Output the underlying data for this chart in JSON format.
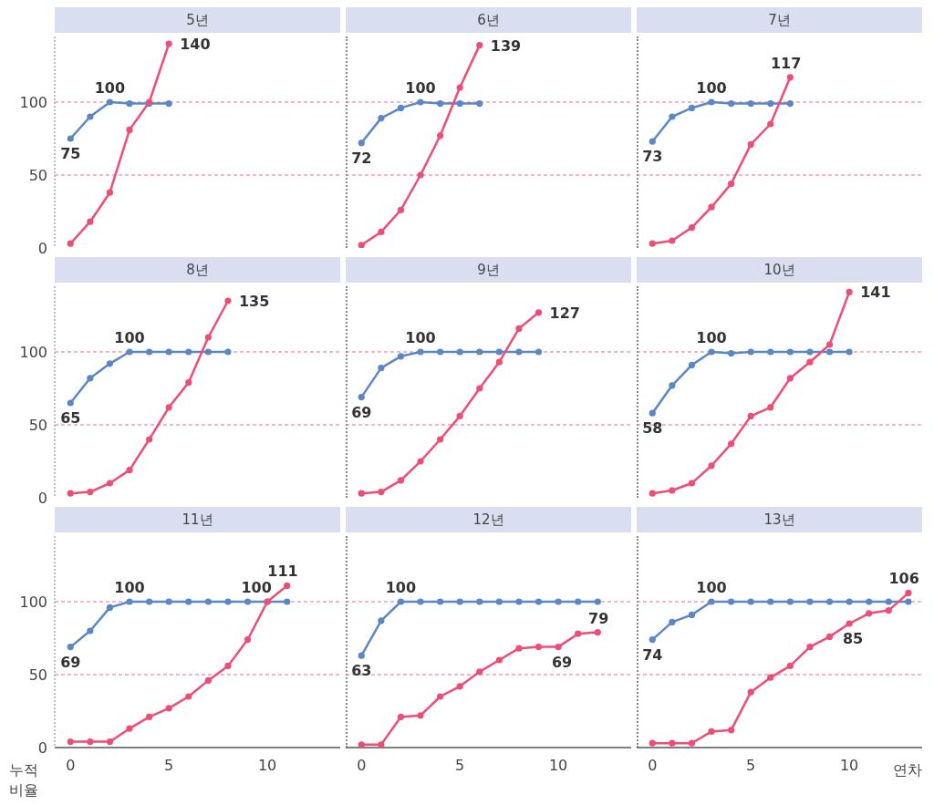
{
  "chart_data": [
    {
      "type": "line",
      "title": "5년",
      "x": [
        0,
        1,
        2,
        3,
        4,
        5
      ],
      "xlim": [
        -0.8,
        13.7
      ],
      "xticks": [
        0,
        5,
        10
      ],
      "ylim": [
        0,
        145
      ],
      "yticks": [
        0,
        50,
        100
      ],
      "tick_labels": "y",
      "marker": "circle",
      "line_style": "solid",
      "ref_lines": [
        {
          "axis": "y",
          "value": 50,
          "color": "#ee6d8e",
          "line_style": "dashed"
        },
        {
          "axis": "y",
          "value": 100,
          "color": "#ee6d8e",
          "line_style": "dashed"
        }
      ],
      "series": [
        {
          "color": "#5b87c6",
          "values": [
            75,
            90,
            100,
            99,
            99,
            99
          ],
          "value_labels": [
            "75",
            null,
            "100",
            null,
            null,
            null
          ]
        },
        {
          "color": "#ee4d76",
          "values": [
            3,
            18,
            38,
            81,
            100,
            140
          ],
          "value_labels": [
            null,
            null,
            null,
            null,
            null,
            "140"
          ]
        }
      ]
    },
    {
      "type": "line",
      "title": "6년",
      "x": [
        0,
        1,
        2,
        3,
        4,
        5,
        6
      ],
      "xlim": [
        -0.8,
        13.7
      ],
      "xticks": [
        0,
        5,
        10
      ],
      "ylim": [
        0,
        145
      ],
      "yticks": [
        0,
        50,
        100
      ],
      "tick_labels": false,
      "marker": "circle",
      "line_style": "solid",
      "ref_lines": [
        {
          "axis": "y",
          "value": 50,
          "color": "#ee6d8e",
          "line_style": "dashed"
        },
        {
          "axis": "y",
          "value": 100,
          "color": "#ee6d8e",
          "line_style": "dashed"
        }
      ],
      "series": [
        {
          "color": "#5b87c6",
          "values": [
            72,
            89,
            96,
            100,
            99,
            99,
            99
          ],
          "value_labels": [
            "72",
            null,
            null,
            "100",
            null,
            null,
            null
          ]
        },
        {
          "color": "#ee4d76",
          "values": [
            2,
            11,
            26,
            50,
            77,
            110,
            139
          ],
          "value_labels": [
            null,
            null,
            null,
            null,
            null,
            null,
            "139"
          ]
        }
      ]
    },
    {
      "type": "line",
      "title": "7년",
      "x": [
        0,
        1,
        2,
        3,
        4,
        5,
        6,
        7
      ],
      "xlim": [
        -0.8,
        13.7
      ],
      "xticks": [
        0,
        5,
        10
      ],
      "ylim": [
        0,
        145
      ],
      "yticks": [
        0,
        50,
        100
      ],
      "tick_labels": false,
      "marker": "circle",
      "line_style": "solid",
      "ref_lines": [
        {
          "axis": "y",
          "value": 50,
          "color": "#ee6d8e",
          "line_style": "dashed"
        },
        {
          "axis": "y",
          "value": 100,
          "color": "#ee6d8e",
          "line_style": "dashed"
        }
      ],
      "series": [
        {
          "color": "#5b87c6",
          "values": [
            73,
            90,
            96,
            100,
            99,
            99,
            99,
            99
          ],
          "value_labels": [
            "73",
            null,
            null,
            "100",
            null,
            null,
            null,
            null
          ]
        },
        {
          "color": "#ee4d76",
          "values": [
            3,
            5,
            14,
            28,
            44,
            71,
            85,
            117
          ],
          "value_labels": [
            null,
            null,
            null,
            null,
            null,
            null,
            null,
            "117"
          ]
        }
      ]
    },
    {
      "type": "line",
      "title": "8년",
      "x": [
        0,
        1,
        2,
        3,
        4,
        5,
        6,
        7,
        8
      ],
      "xlim": [
        -0.8,
        13.7
      ],
      "xticks": [
        0,
        5,
        10
      ],
      "ylim": [
        0,
        145
      ],
      "yticks": [
        0,
        50,
        100
      ],
      "tick_labels": "y",
      "marker": "circle",
      "line_style": "solid",
      "ref_lines": [
        {
          "axis": "y",
          "value": 50,
          "color": "#ee6d8e",
          "line_style": "dashed"
        },
        {
          "axis": "y",
          "value": 100,
          "color": "#ee6d8e",
          "line_style": "dashed"
        }
      ],
      "series": [
        {
          "color": "#5b87c6",
          "values": [
            65,
            82,
            92,
            100,
            100,
            100,
            100,
            100,
            100
          ],
          "value_labels": [
            "65",
            null,
            null,
            "100",
            null,
            null,
            null,
            null,
            null
          ]
        },
        {
          "color": "#ee4d76",
          "values": [
            3,
            4,
            10,
            19,
            40,
            62,
            79,
            110,
            135
          ],
          "value_labels": [
            null,
            null,
            null,
            null,
            null,
            null,
            null,
            null,
            "135"
          ]
        }
      ]
    },
    {
      "type": "line",
      "title": "9년",
      "x": [
        0,
        1,
        2,
        3,
        4,
        5,
        6,
        7,
        8,
        9
      ],
      "xlim": [
        -0.8,
        13.7
      ],
      "xticks": [
        0,
        5,
        10
      ],
      "ylim": [
        0,
        145
      ],
      "yticks": [
        0,
        50,
        100
      ],
      "tick_labels": false,
      "marker": "circle",
      "line_style": "solid",
      "ref_lines": [
        {
          "axis": "y",
          "value": 50,
          "color": "#ee6d8e",
          "line_style": "dashed"
        },
        {
          "axis": "y",
          "value": 100,
          "color": "#ee6d8e",
          "line_style": "dashed"
        }
      ],
      "series": [
        {
          "color": "#5b87c6",
          "values": [
            69,
            89,
            97,
            100,
            100,
            100,
            100,
            100,
            100,
            100
          ],
          "value_labels": [
            "69",
            null,
            null,
            "100",
            null,
            null,
            null,
            null,
            null,
            null
          ]
        },
        {
          "color": "#ee4d76",
          "values": [
            3,
            4,
            12,
            25,
            40,
            56,
            75,
            93,
            116,
            127
          ],
          "value_labels": [
            null,
            null,
            null,
            null,
            null,
            null,
            null,
            null,
            null,
            "127"
          ]
        }
      ]
    },
    {
      "type": "line",
      "title": "10년",
      "x": [
        0,
        1,
        2,
        3,
        4,
        5,
        6,
        7,
        8,
        9,
        10
      ],
      "xlim": [
        -0.8,
        13.7
      ],
      "xticks": [
        0,
        5,
        10
      ],
      "ylim": [
        0,
        145
      ],
      "yticks": [
        0,
        50,
        100
      ],
      "tick_labels": false,
      "marker": "circle",
      "line_style": "solid",
      "ref_lines": [
        {
          "axis": "y",
          "value": 50,
          "color": "#ee6d8e",
          "line_style": "dashed"
        },
        {
          "axis": "y",
          "value": 100,
          "color": "#ee6d8e",
          "line_style": "dashed"
        }
      ],
      "series": [
        {
          "color": "#5b87c6",
          "values": [
            58,
            77,
            91,
            100,
            99,
            100,
            100,
            100,
            100,
            100,
            100
          ],
          "value_labels": [
            "58",
            null,
            null,
            "100",
            null,
            null,
            null,
            null,
            null,
            null,
            null
          ]
        },
        {
          "color": "#ee4d76",
          "values": [
            3,
            5,
            10,
            22,
            37,
            56,
            62,
            82,
            93,
            105,
            141
          ],
          "value_labels": [
            null,
            null,
            null,
            null,
            null,
            null,
            null,
            null,
            null,
            null,
            "141"
          ]
        }
      ]
    },
    {
      "type": "line",
      "title": "11년",
      "ylabel": "누적 비율",
      "x": [
        0,
        1,
        2,
        3,
        4,
        5,
        6,
        7,
        8,
        9,
        10,
        11
      ],
      "xlim": [
        -0.8,
        13.7
      ],
      "xticks": [
        0,
        5,
        10
      ],
      "ylim": [
        0,
        145
      ],
      "yticks": [
        0,
        50,
        100
      ],
      "marker": "circle",
      "line_style": "solid",
      "ref_lines": [
        {
          "axis": "y",
          "value": 50,
          "color": "#ee6d8e",
          "line_style": "dashed"
        },
        {
          "axis": "y",
          "value": 100,
          "color": "#ee6d8e",
          "line_style": "dashed"
        }
      ],
      "series": [
        {
          "color": "#5b87c6",
          "values": [
            69,
            80,
            96,
            100,
            100,
            100,
            100,
            100,
            100,
            100,
            100,
            100
          ],
          "value_labels": [
            "69",
            null,
            null,
            "100",
            null,
            null,
            null,
            null,
            null,
            null,
            null,
            null
          ]
        },
        {
          "color": "#ee4d76",
          "values": [
            4,
            4,
            4,
            13,
            21,
            27,
            35,
            46,
            56,
            74,
            100,
            111
          ],
          "value_labels": [
            null,
            null,
            null,
            null,
            null,
            null,
            null,
            null,
            null,
            null,
            "100",
            "111"
          ]
        }
      ]
    },
    {
      "type": "line",
      "title": "12년",
      "x": [
        0,
        1,
        2,
        3,
        4,
        5,
        6,
        7,
        8,
        9,
        10,
        11,
        12
      ],
      "xlim": [
        -0.8,
        13.7
      ],
      "xticks": [
        0,
        5,
        10
      ],
      "ylim": [
        0,
        145
      ],
      "yticks": [
        0,
        50,
        100
      ],
      "tick_labels": "x",
      "marker": "circle",
      "line_style": "solid",
      "ref_lines": [
        {
          "axis": "y",
          "value": 50,
          "color": "#ee6d8e",
          "line_style": "dashed"
        },
        {
          "axis": "y",
          "value": 100,
          "color": "#ee6d8e",
          "line_style": "dashed"
        }
      ],
      "series": [
        {
          "color": "#5b87c6",
          "values": [
            63,
            87,
            100,
            100,
            100,
            100,
            100,
            100,
            100,
            100,
            100,
            100,
            100
          ],
          "value_labels": [
            "63",
            null,
            "100",
            null,
            null,
            null,
            null,
            null,
            null,
            null,
            null,
            null,
            null
          ]
        },
        {
          "color": "#ee4d76",
          "values": [
            2,
            2,
            21,
            22,
            35,
            42,
            52,
            60,
            68,
            69,
            69,
            78,
            79
          ],
          "value_labels": [
            null,
            null,
            null,
            null,
            null,
            null,
            null,
            null,
            null,
            null,
            "69",
            null,
            "79"
          ]
        }
      ]
    },
    {
      "type": "line",
      "title": "13년",
      "xlabel": "연차",
      "x": [
        0,
        1,
        2,
        3,
        4,
        5,
        6,
        7,
        8,
        9,
        10,
        11,
        12,
        13
      ],
      "xlim": [
        -0.8,
        13.7
      ],
      "xticks": [
        0,
        5,
        10
      ],
      "ylim": [
        0,
        145
      ],
      "yticks": [
        0,
        50,
        100
      ],
      "tick_labels": "x",
      "marker": "circle",
      "line_style": "solid",
      "ref_lines": [
        {
          "axis": "y",
          "value": 50,
          "color": "#ee6d8e",
          "line_style": "dashed"
        },
        {
          "axis": "y",
          "value": 100,
          "color": "#ee6d8e",
          "line_style": "dashed"
        }
      ],
      "series": [
        {
          "color": "#5b87c6",
          "values": [
            74,
            86,
            91,
            100,
            100,
            100,
            100,
            100,
            100,
            100,
            100,
            100,
            100,
            100
          ],
          "value_labels": [
            "74",
            null,
            null,
            "100",
            null,
            null,
            null,
            null,
            null,
            null,
            null,
            null,
            null,
            null
          ]
        },
        {
          "color": "#ee4d76",
          "values": [
            3,
            3,
            3,
            11,
            12,
            38,
            48,
            56,
            69,
            76,
            85,
            92,
            94,
            106
          ],
          "value_labels": [
            null,
            null,
            null,
            null,
            null,
            null,
            null,
            null,
            null,
            null,
            "85",
            null,
            null,
            "106"
          ]
        }
      ]
    }
  ]
}
